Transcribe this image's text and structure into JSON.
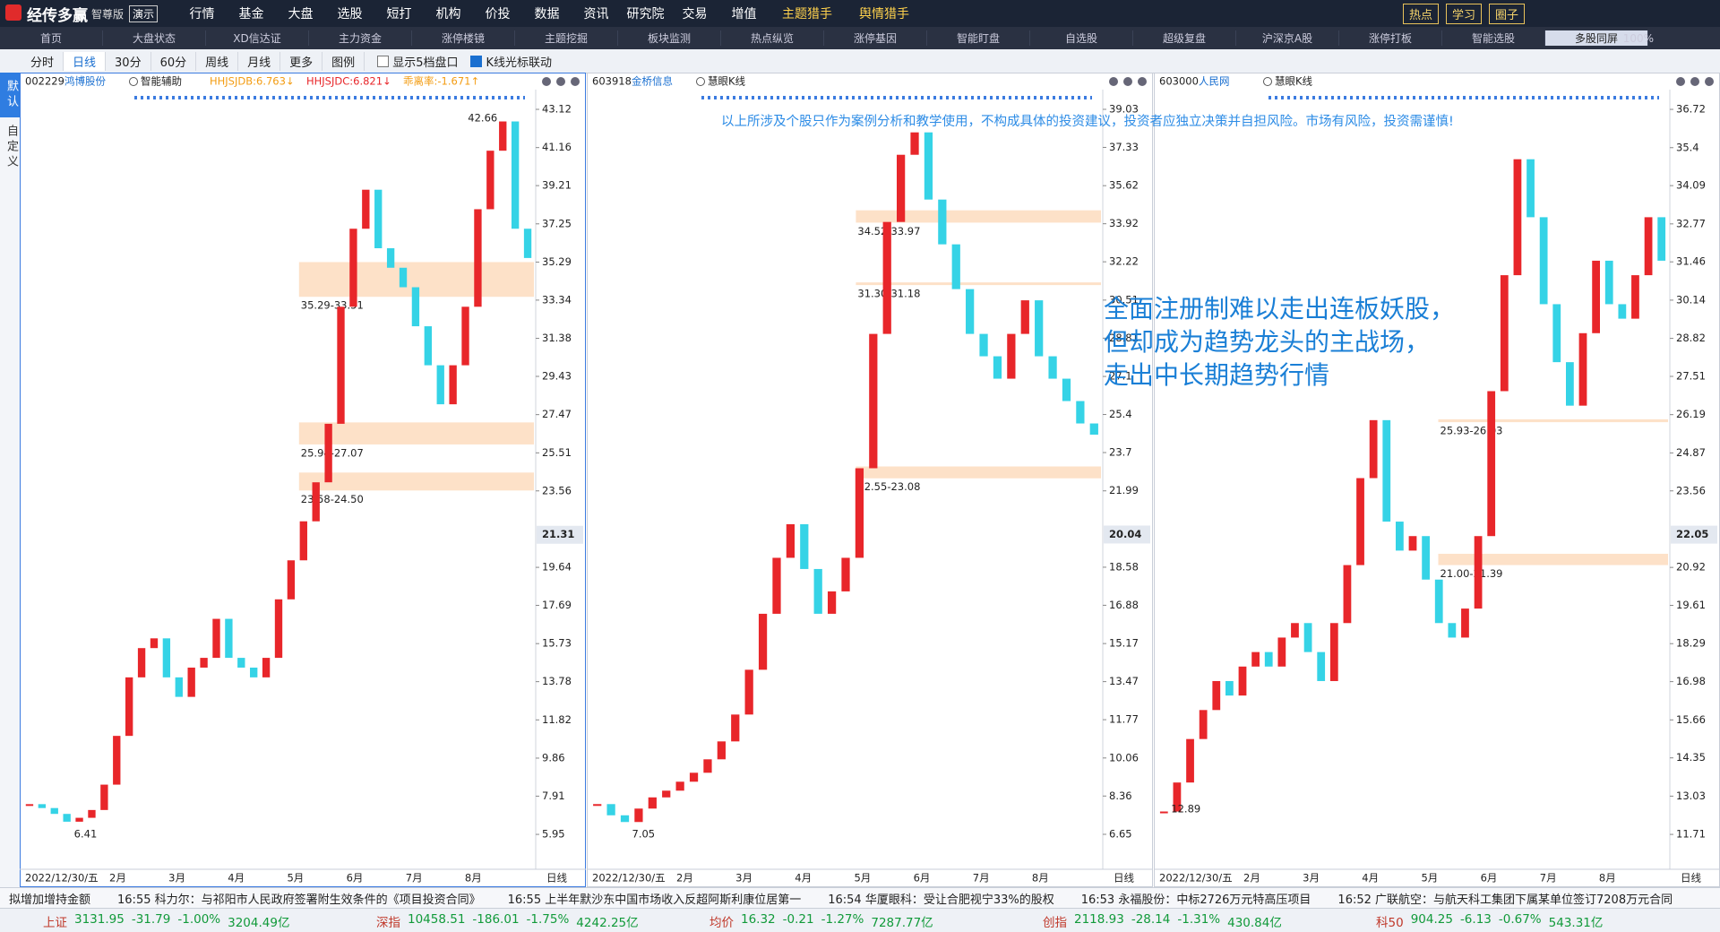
{
  "menu": {
    "logo": "经传多赢",
    "edition": "智尊版",
    "demo": "演示",
    "items": [
      "行情",
      "基金",
      "大盘",
      "选股",
      "短打",
      "机构",
      "价投",
      "数据",
      "资讯",
      "研究院",
      "交易",
      "增值",
      "主题猎手",
      "舆情猎手"
    ],
    "right": [
      "热点",
      "学习",
      "圈子"
    ]
  },
  "tabs": {
    "items": [
      "首页",
      "大盘状态",
      "XD信达证",
      "主力资金",
      "涨停楼镜",
      "主题挖掘",
      "板块监测",
      "热点纵览",
      "涨停基因",
      "智能盯盘",
      "自选股",
      "超级复盘",
      "沪深京A股",
      "涨停打板",
      "智能选股",
      "多股同屏"
    ],
    "zoom": "100%"
  },
  "toolbar": {
    "items": [
      "分时",
      "日线",
      "30分",
      "60分",
      "周线",
      "月线",
      "更多",
      "图例"
    ],
    "checkboxes": [
      "显示5档盘口",
      "K线光标联动"
    ]
  },
  "sidebar": [
    "默认",
    "自定义"
  ],
  "annotations": {
    "disclaimer": "以上所涉及个股只作为案例分析和教学使用，不构成具体的投资建议，投资者应独立决策并自担风险。市场有风险，投资需谨慎!",
    "headline": [
      "全面注册制难以走出连板妖股，",
      "但却成为趋势龙头的主战场，",
      "走出中长期趋势行情"
    ]
  },
  "chart_data": [
    {
      "type": "candlestick",
      "code": "002229",
      "name": "鸿博股份",
      "indicator": "智能辅助",
      "readouts": [
        "HHJSJDB:6.763↓",
        "HHJSJDC:6.821↓",
        "乖离率:-1.671↑"
      ],
      "ylim": [
        5.31,
        44.04
      ],
      "yticks": [
        43.12,
        41.16,
        39.21,
        37.25,
        35.29,
        33.34,
        31.38,
        29.43,
        27.47,
        25.51,
        23.56,
        19.64,
        17.69,
        15.73,
        13.78,
        11.82,
        9.86,
        7.91,
        5.95
      ],
      "last_price": 21.31,
      "values": [
        7.5,
        7.3,
        7.0,
        6.6,
        6.8,
        7.2,
        8.5,
        11,
        14,
        15.5,
        16,
        14,
        13,
        14.5,
        15,
        17,
        15,
        14.5,
        14,
        15,
        18,
        20,
        22,
        24,
        27,
        33,
        37,
        39,
        36,
        35,
        34,
        32,
        30,
        28,
        30,
        33,
        38,
        41,
        42.5,
        37,
        35.5
      ],
      "bands": [
        {
          "label": "35.29-33.51",
          "low": 33.51,
          "high": 35.29
        },
        {
          "label": "25.94-27.07",
          "low": 25.94,
          "high": 27.07
        },
        {
          "label": "23.58-24.50",
          "low": 23.58,
          "high": 24.5
        }
      ],
      "high_label": 42.66,
      "low_label": 6.41,
      "date": "2022/12/30/五",
      "months": [
        "2月",
        "3月",
        "4月",
        "5月",
        "6月",
        "7月",
        "8月"
      ],
      "period": "日线"
    },
    {
      "type": "candlestick",
      "code": "603918",
      "name": "金桥信息",
      "indicator": "慧眼K线",
      "ylim": [
        6.09,
        39.83
      ],
      "yticks": [
        39.03,
        37.33,
        35.62,
        33.92,
        32.22,
        30.51,
        28.81,
        27.1,
        25.4,
        23.7,
        21.99,
        18.58,
        16.88,
        15.17,
        13.47,
        11.77,
        10.06,
        8.36,
        6.65
      ],
      "last_price": 20.04,
      "values": [
        8,
        7.5,
        7.2,
        7.8,
        8.3,
        8.6,
        9,
        9.4,
        10,
        10.8,
        12,
        14,
        16.5,
        19,
        20.5,
        18.5,
        16.5,
        17.5,
        19,
        23,
        29,
        34,
        37,
        38,
        35,
        33,
        31,
        29,
        28,
        27,
        29,
        30.5,
        28,
        27,
        26,
        25,
        24.5
      ],
      "bands": [
        {
          "label": "34.52-33.97",
          "low": 33.97,
          "high": 34.52
        },
        {
          "label": "31.30-31.18",
          "low": 31.18,
          "high": 31.3
        },
        {
          "label": "22.55-23.08",
          "low": 22.55,
          "high": 23.08
        }
      ],
      "low_label": 7.05,
      "date": "2022/12/30/五",
      "months": [
        "2月",
        "3月",
        "4月",
        "5月",
        "6月",
        "7月",
        "8月"
      ],
      "period": "日线"
    },
    {
      "type": "candlestick",
      "code": "603000",
      "name": "人民网",
      "indicator": "慧眼K线",
      "ylim": [
        11.28,
        37.34
      ],
      "yticks": [
        36.72,
        35.4,
        34.09,
        32.77,
        31.46,
        30.14,
        28.82,
        27.51,
        26.19,
        24.87,
        23.56,
        20.92,
        19.61,
        18.29,
        16.98,
        15.66,
        14.35,
        13.03,
        11.71
      ],
      "last_price": 22.05,
      "values": [
        12.5,
        13.5,
        15,
        16,
        17,
        16.5,
        17.5,
        18,
        17.5,
        18.5,
        19,
        18,
        17,
        19,
        21,
        24,
        26,
        22.5,
        21.5,
        22,
        20.5,
        19,
        18.5,
        19.5,
        22,
        27,
        31,
        35,
        33,
        30,
        28,
        26.5,
        29,
        31.5,
        30,
        29.5,
        31,
        33,
        31.5
      ],
      "bands": [
        {
          "label": "25.93-26.03",
          "low": 25.93,
          "high": 26.03
        },
        {
          "label": "21.00-21.39",
          "low": 21.0,
          "high": 21.39
        }
      ],
      "low_label": 12.89,
      "date": "2022/12/30/五",
      "months": [
        "2月",
        "3月",
        "4月",
        "5月",
        "6月",
        "7月",
        "8月"
      ],
      "period": "日线"
    }
  ],
  "news": [
    "拟增加增持金额",
    "16:55 科力尔：与祁阳市人民政府签署附生效条件的《项目投资合同》",
    "16:55 上半年默沙东中国市场收入反超阿斯利康位居第一",
    "16:54 华厦眼科：受让合肥视宁33%的股权",
    "16:53 永福股份：中标2726万元特高压项目",
    "16:52 广联航空：与航天科工集团下属某单位签订7208万元合同"
  ],
  "indices": [
    {
      "name": "上证",
      "price": "3131.95",
      "change": "-31.79",
      "pct": "-1.00%",
      "amount": "3204.49亿"
    },
    {
      "name": "深指",
      "price": "10458.51",
      "change": "-186.01",
      "pct": "-1.75%",
      "amount": "4242.25亿"
    },
    {
      "name": "均价",
      "price": "16.32",
      "change": "-0.21",
      "pct": "-1.27%",
      "amount": "7287.77亿"
    },
    {
      "name": "创指",
      "price": "2118.93",
      "change": "-28.14",
      "pct": "-1.31%",
      "amount": "430.84亿"
    },
    {
      "name": "科50",
      "price": "904.25",
      "change": "-6.13",
      "pct": "-0.67%",
      "amount": "543.31亿"
    }
  ]
}
